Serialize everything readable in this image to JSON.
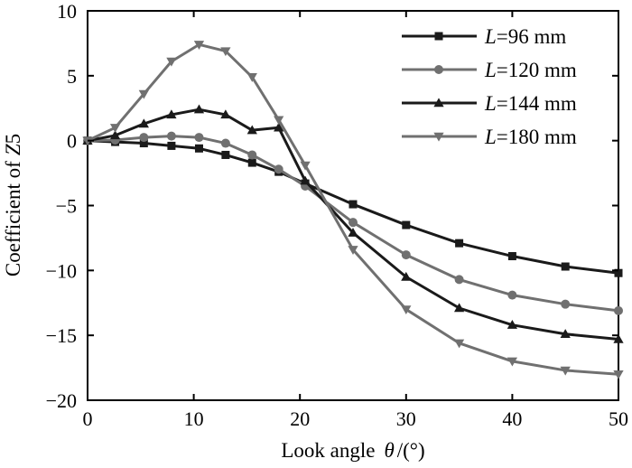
{
  "chart_data": {
    "type": "line",
    "title": "",
    "xlabel": "Look angle",
    "xlabel_symbol": "θ",
    "xlabel_unit": "/(°)",
    "ylabel": "Coefficient of",
    "ylabel_symbol": "Z",
    "ylabel_suffix": "5",
    "xlim": [
      0,
      50
    ],
    "ylim": [
      -20,
      10
    ],
    "xticks": [
      "0",
      "10",
      "20",
      "30",
      "40",
      "50"
    ],
    "yticks": [
      "10",
      "5",
      "0",
      "−5",
      "−10",
      "−15",
      "−20"
    ],
    "grid": false,
    "legend_position": "top-right",
    "series": [
      {
        "name": "L=96 mm",
        "label_italic": "L",
        "label_rest": "=96 mm",
        "marker": "square",
        "color": "#1a1a1a",
        "x": [
          0,
          2.6,
          5.3,
          7.9,
          10.5,
          13.0,
          15.5,
          18.0,
          20.5,
          25.0,
          30.0,
          35.0,
          40.0,
          45.0,
          50.0
        ],
        "y": [
          0,
          -0.1,
          -0.2,
          -0.4,
          -0.6,
          -1.1,
          -1.7,
          -2.4,
          -3.3,
          -4.9,
          -6.5,
          -7.9,
          -8.9,
          -9.7,
          -10.2
        ]
      },
      {
        "name": "L=120 mm",
        "label_italic": "L",
        "label_rest": "=120 mm",
        "marker": "circle",
        "color": "#707070",
        "x": [
          0,
          2.6,
          5.3,
          7.9,
          10.5,
          13.0,
          15.5,
          18.0,
          20.5,
          25.0,
          30.0,
          35.0,
          40.0,
          45.0,
          50.0
        ],
        "y": [
          0,
          0.05,
          0.25,
          0.35,
          0.25,
          -0.2,
          -1.1,
          -2.2,
          -3.5,
          -6.3,
          -8.8,
          -10.7,
          -11.9,
          -12.6,
          -13.1
        ]
      },
      {
        "name": "L=144 mm",
        "label_italic": "L",
        "label_rest": "=144 mm",
        "marker": "triangle-up",
        "color": "#1a1a1a",
        "x": [
          0,
          2.6,
          5.3,
          7.9,
          10.5,
          13.0,
          15.5,
          18.0,
          20.5,
          25.0,
          30.0,
          35.0,
          40.0,
          45.0,
          50.0
        ],
        "y": [
          0,
          0.4,
          1.3,
          2.0,
          2.4,
          2.0,
          0.8,
          1.0,
          -3.1,
          -7.1,
          -10.5,
          -12.9,
          -14.2,
          -14.9,
          -15.3
        ]
      },
      {
        "name": "L=180 mm",
        "label_italic": "L",
        "label_rest": "=180 mm",
        "marker": "triangle-down",
        "color": "#707070",
        "x": [
          0,
          2.6,
          5.3,
          7.9,
          10.5,
          13.0,
          15.5,
          18.0,
          20.5,
          25.0,
          30.0,
          35.0,
          40.0,
          45.0,
          50.0
        ],
        "y": [
          0,
          1.0,
          3.6,
          6.1,
          7.4,
          6.9,
          4.9,
          1.6,
          -1.9,
          -8.4,
          -13.0,
          -15.6,
          -17.0,
          -17.7,
          -18.0
        ]
      }
    ]
  }
}
